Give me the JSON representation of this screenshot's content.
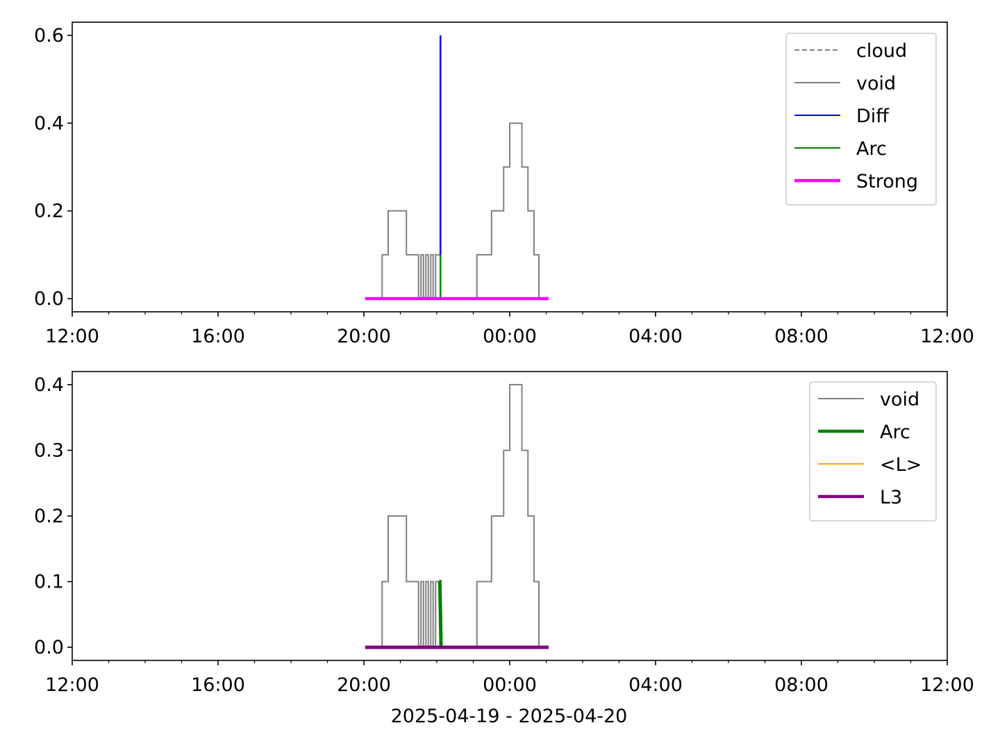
{
  "figure": {
    "xlabel": "2025-04-19 - 2025-04-20"
  },
  "chart_data": [
    {
      "type": "line",
      "x_axis": "time",
      "xlim": [
        "2025-04-19 12:00",
        "2025-04-20 12:00"
      ],
      "xticks": [
        "12:00",
        "16:00",
        "20:00",
        "00:00",
        "04:00",
        "08:00",
        "12:00"
      ],
      "ylim": [
        -0.03,
        0.63
      ],
      "yticks": [
        "0.0",
        "0.2",
        "0.4",
        "0.6"
      ],
      "ytick_values": [
        0.0,
        0.2,
        0.4,
        0.6
      ],
      "grid": false,
      "legend_position": "top-right",
      "legend": [
        {
          "label": "cloud",
          "color": "#808080",
          "style": "dashed"
        },
        {
          "label": "void",
          "color": "#808080",
          "style": "solid"
        },
        {
          "label": "Diff",
          "color": "#0000ff",
          "style": "solid"
        },
        {
          "label": "Arc",
          "color": "#008000",
          "style": "solid"
        },
        {
          "label": "Strong",
          "color": "#ff00ff",
          "style": "solid-thick"
        }
      ],
      "series": [
        {
          "name": "void",
          "color": "#808080",
          "width": 2,
          "x": [
            "2025-04-19 20:30",
            "2025-04-19 20:30",
            "2025-04-19 20:40",
            "2025-04-19 20:40",
            "2025-04-19 21:10",
            "2025-04-19 21:10",
            "2025-04-19 21:30",
            "2025-04-19 21:30",
            "2025-04-19 21:34",
            "2025-04-19 21:34",
            "2025-04-19 21:38",
            "2025-04-19 21:38",
            "2025-04-19 21:42",
            "2025-04-19 21:42",
            "2025-04-19 21:46",
            "2025-04-19 21:46",
            "2025-04-19 21:50",
            "2025-04-19 21:50",
            "2025-04-19 21:54",
            "2025-04-19 21:54",
            "2025-04-19 21:58",
            "2025-04-19 21:58",
            "2025-04-19 22:06",
            "2025-04-19 22:06",
            "2025-04-19 22:06",
            "2025-04-19 23:06",
            "2025-04-19 23:06",
            "2025-04-19 23:30",
            "2025-04-19 23:30",
            "2025-04-19 23:50",
            "2025-04-19 23:50",
            "2025-04-20 00:00",
            "2025-04-20 00:00",
            "2025-04-20 00:20",
            "2025-04-20 00:20",
            "2025-04-20 00:30",
            "2025-04-20 00:30",
            "2025-04-20 00:40",
            "2025-04-20 00:40",
            "2025-04-20 00:48",
            "2025-04-20 00:48"
          ],
          "y": [
            0.0,
            0.1,
            0.1,
            0.2,
            0.2,
            0.1,
            0.1,
            0.0,
            0.0,
            0.1,
            0.1,
            0.0,
            0.0,
            0.1,
            0.1,
            0.0,
            0.0,
            0.1,
            0.1,
            0.0,
            0.0,
            0.1,
            0.1,
            0.0,
            0.0,
            0.0,
            0.1,
            0.1,
            0.2,
            0.2,
            0.3,
            0.3,
            0.4,
            0.4,
            0.3,
            0.3,
            0.2,
            0.2,
            0.1,
            0.1,
            0.0
          ]
        },
        {
          "name": "Diff",
          "color": "#0000ff",
          "width": 2.5,
          "x": [
            "2025-04-19 22:06",
            "2025-04-19 22:06"
          ],
          "y": [
            0.0,
            0.6
          ]
        },
        {
          "name": "Arc",
          "color": "#008000",
          "width": 2.5,
          "x": [
            "2025-04-19 22:06",
            "2025-04-19 22:06"
          ],
          "y": [
            0.0,
            0.1
          ]
        },
        {
          "name": "Strong",
          "color": "#ff00ff",
          "width": 4.5,
          "x": [
            "2025-04-19 20:02",
            "2025-04-20 01:04"
          ],
          "y": [
            0.0,
            0.0
          ]
        }
      ]
    },
    {
      "type": "line",
      "x_axis": "time",
      "xlim": [
        "2025-04-19 12:00",
        "2025-04-20 12:00"
      ],
      "xticks": [
        "12:00",
        "16:00",
        "20:00",
        "00:00",
        "04:00",
        "08:00",
        "12:00"
      ],
      "ylim": [
        -0.02,
        0.42
      ],
      "yticks": [
        "0.0",
        "0.1",
        "0.2",
        "0.3",
        "0.4"
      ],
      "ytick_values": [
        0.0,
        0.1,
        0.2,
        0.3,
        0.4
      ],
      "grid": false,
      "legend_position": "top-right",
      "legend": [
        {
          "label": "void",
          "color": "#808080",
          "style": "solid"
        },
        {
          "label": "Arc",
          "color": "#008000",
          "style": "solid-thick"
        },
        {
          "label": "<L>",
          "color": "#ffa500",
          "style": "solid"
        },
        {
          "label": "L3",
          "color": "#800080",
          "style": "solid-thick"
        }
      ],
      "series": [
        {
          "name": "void",
          "color": "#808080",
          "width": 2,
          "x": [
            "2025-04-19 20:30",
            "2025-04-19 20:30",
            "2025-04-19 20:40",
            "2025-04-19 20:40",
            "2025-04-19 21:10",
            "2025-04-19 21:10",
            "2025-04-19 21:30",
            "2025-04-19 21:30",
            "2025-04-19 21:34",
            "2025-04-19 21:34",
            "2025-04-19 21:38",
            "2025-04-19 21:38",
            "2025-04-19 21:42",
            "2025-04-19 21:42",
            "2025-04-19 21:46",
            "2025-04-19 21:46",
            "2025-04-19 21:50",
            "2025-04-19 21:50",
            "2025-04-19 21:54",
            "2025-04-19 21:54",
            "2025-04-19 21:58",
            "2025-04-19 21:58",
            "2025-04-19 22:06",
            "2025-04-19 22:06",
            "2025-04-19 22:06",
            "2025-04-19 23:06",
            "2025-04-19 23:06",
            "2025-04-19 23:30",
            "2025-04-19 23:30",
            "2025-04-19 23:50",
            "2025-04-19 23:50",
            "2025-04-20 00:00",
            "2025-04-20 00:00",
            "2025-04-20 00:20",
            "2025-04-20 00:20",
            "2025-04-20 00:30",
            "2025-04-20 00:30",
            "2025-04-20 00:40",
            "2025-04-20 00:40",
            "2025-04-20 00:48",
            "2025-04-20 00:48"
          ],
          "y": [
            0.0,
            0.1,
            0.1,
            0.2,
            0.2,
            0.1,
            0.1,
            0.0,
            0.0,
            0.1,
            0.1,
            0.0,
            0.0,
            0.1,
            0.1,
            0.0,
            0.0,
            0.1,
            0.1,
            0.0,
            0.0,
            0.1,
            0.1,
            0.0,
            0.0,
            0.0,
            0.1,
            0.1,
            0.2,
            0.2,
            0.3,
            0.3,
            0.4,
            0.4,
            0.3,
            0.3,
            0.2,
            0.2,
            0.1,
            0.1,
            0.0
          ]
        },
        {
          "name": "Arc",
          "color": "#008000",
          "width": 5,
          "x": [
            "2025-04-19 22:04",
            "2025-04-19 22:05",
            "2025-04-19 22:07"
          ],
          "y": [
            0.1,
            0.1,
            0.0
          ]
        },
        {
          "name": "L3",
          "color": "#800080",
          "width": 5,
          "x": [
            "2025-04-19 20:02",
            "2025-04-20 01:04"
          ],
          "y": [
            0.0,
            0.0
          ]
        }
      ]
    }
  ]
}
